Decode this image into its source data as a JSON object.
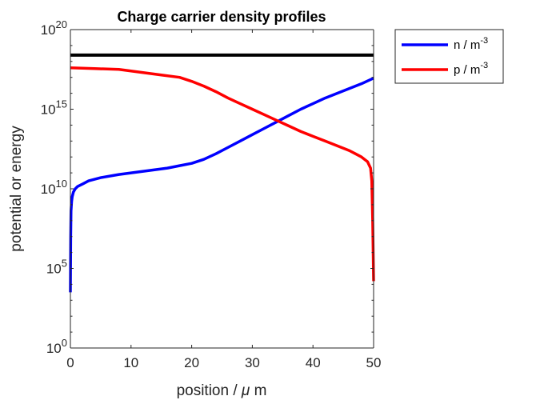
{
  "chart_data": {
    "type": "line",
    "title": "Charge carrier density profiles",
    "xlabel_prefix": "position / ",
    "xlabel_symbol": "μ",
    "xlabel_suffix": " m",
    "ylabel": "potential or energy",
    "xlim": [
      0,
      50
    ],
    "ylim_exponents": [
      0,
      20
    ],
    "y_scale": "log",
    "x_ticks": [
      "0",
      "10",
      "20",
      "30",
      "40",
      "50"
    ],
    "x_tick_values": [
      0,
      10,
      20,
      30,
      40,
      50
    ],
    "y_tick_base": "10",
    "y_tick_exponents": [
      "0",
      "5",
      "10",
      "15",
      "20"
    ],
    "y_tick_values": [
      0,
      5,
      10,
      15,
      20
    ],
    "legend_placement": "outside-top-right",
    "grid": false,
    "colors": {
      "axis": "#262626",
      "n": "#0000ff",
      "p": "#ff0000",
      "reference": "#000000"
    },
    "series": [
      {
        "key": "n",
        "name": "n / m",
        "name_sup": "-3",
        "color": "#0000ff",
        "x": [
          0,
          0.05,
          0.1,
          0.2,
          0.3,
          0.5,
          0.8,
          1.2,
          2,
          3,
          5,
          8,
          10,
          13,
          16,
          18,
          20,
          22,
          24,
          26,
          28,
          30,
          32,
          34,
          36,
          38,
          40,
          42,
          44,
          46,
          48,
          50
        ],
        "y_log10": [
          3.5,
          7.0,
          8.6,
          9.2,
          9.5,
          9.8,
          10.0,
          10.15,
          10.3,
          10.5,
          10.7,
          10.9,
          11.0,
          11.15,
          11.3,
          11.45,
          11.6,
          11.85,
          12.2,
          12.6,
          13.0,
          13.4,
          13.8,
          14.2,
          14.6,
          15.0,
          15.35,
          15.7,
          16.0,
          16.3,
          16.6,
          16.95
        ]
      },
      {
        "key": "p",
        "name": "p / m",
        "name_sup": "-3",
        "color": "#ff0000",
        "x": [
          0,
          4,
          8,
          12,
          15,
          18,
          20,
          22,
          24,
          26,
          28,
          30,
          32,
          34,
          36,
          38,
          40,
          42,
          44,
          46,
          47,
          48,
          49,
          49.5,
          49.7,
          49.85,
          50
        ],
        "y_log10": [
          17.6,
          17.55,
          17.5,
          17.3,
          17.15,
          17.0,
          16.75,
          16.45,
          16.1,
          15.7,
          15.35,
          15.0,
          14.65,
          14.3,
          13.95,
          13.6,
          13.3,
          13.0,
          12.7,
          12.4,
          12.2,
          12.0,
          11.7,
          11.3,
          10.5,
          8.0,
          4.2
        ]
      },
      {
        "key": "reference",
        "name": "",
        "color": "#000000",
        "x": [
          0,
          50
        ],
        "y_log10": [
          18.4,
          18.4
        ]
      }
    ]
  }
}
